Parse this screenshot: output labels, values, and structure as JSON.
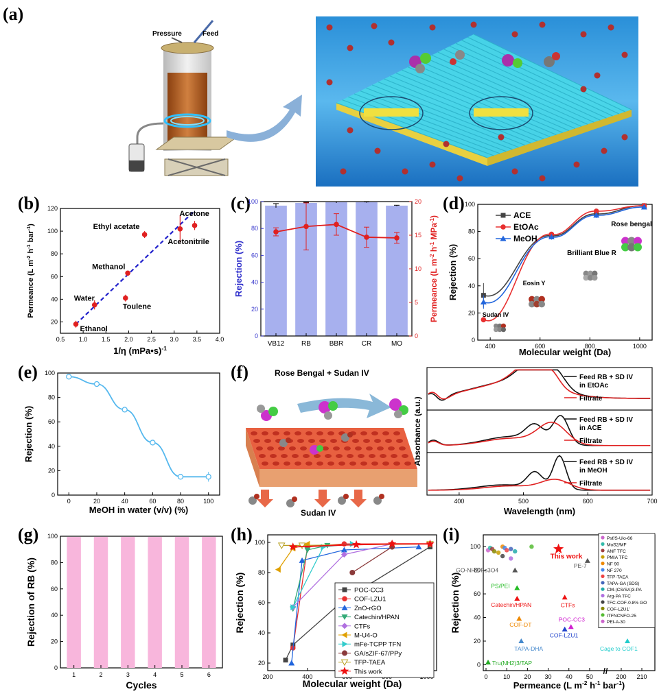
{
  "labels": {
    "a": "(a)",
    "b": "(b)",
    "c": "(c)",
    "d": "(d)",
    "e": "(e)",
    "f": "(f)",
    "g": "(g)",
    "h": "(h)",
    "i": "(i)"
  },
  "panel_a": {
    "pressure": "Pressure",
    "feed": "Feed"
  },
  "panel_f": {
    "top_label": "Rose Bengal + Sudan IV",
    "bottom_label": "Sudan IV"
  },
  "colors": {
    "blue": "#3333cc",
    "red": "#e02020",
    "bar": "#a7b0ee",
    "pink": "#f8b6dc"
  },
  "chart_data": [
    {
      "id": "b",
      "type": "scatter",
      "xlabel": "1/η (mPa•s)-1",
      "ylabel": "Permeance (L m-2 h-1 bar-1)",
      "xlim": [
        0.5,
        4.0
      ],
      "ylim": [
        10,
        120
      ],
      "xticks": [
        "0.5",
        "1.0",
        "1.5",
        "2.0",
        "2.5",
        "3.0",
        "3.5",
        "4.0"
      ],
      "yticks": [
        "20",
        "40",
        "60",
        "80",
        "100",
        "120"
      ],
      "points": [
        {
          "label": "Ethanol",
          "x": 0.84,
          "y": 18,
          "err": 3
        },
        {
          "label": "Water",
          "x": 1.25,
          "y": 35,
          "err": 4
        },
        {
          "label": "Toulene",
          "x": 1.93,
          "y": 41,
          "err": 3
        },
        {
          "label": "Methanol",
          "x": 1.98,
          "y": 63,
          "err": 2
        },
        {
          "label": "Ethyl acetate",
          "x": 2.35,
          "y": 97,
          "err": 3
        },
        {
          "label": "Acetonitrile",
          "x": 3.13,
          "y": 102,
          "err": 12
        },
        {
          "label": "Acetone",
          "x": 3.45,
          "y": 105,
          "err": 4
        }
      ],
      "fit": [
        [
          0.84,
          18
        ],
        [
          3.45,
          118
        ]
      ]
    },
    {
      "id": "c",
      "type": "bar",
      "categories": [
        "VB12",
        "RB",
        "BBR",
        "CR",
        "MO"
      ],
      "ylabel": "Rejection (%)",
      "y2label": "Permeance (L m-2 h-1 MPa-1)",
      "ylim": [
        0,
        100
      ],
      "y2lim": [
        0,
        20
      ],
      "yticks": [
        "0",
        "20",
        "40",
        "60",
        "80",
        "100"
      ],
      "y2ticks": [
        "0",
        "5",
        "10",
        "15",
        "20"
      ],
      "rejection": [
        97,
        99,
        99.5,
        99.5,
        97
      ],
      "rejection_err": [
        1.5,
        0.5,
        0.5,
        0.3,
        0.3
      ],
      "permeance": [
        15.5,
        16.3,
        16.6,
        14.7,
        14.6
      ],
      "permeance_err": [
        0.6,
        3.5,
        1.6,
        1.5,
        0.8
      ]
    },
    {
      "id": "d",
      "type": "line",
      "xlabel": "Molecular weight (Da)",
      "ylabel": "Rejection (%)",
      "xlim": [
        350,
        1050
      ],
      "ylim": [
        0,
        100
      ],
      "xticks": [
        "400",
        "600",
        "800",
        "1000"
      ],
      "yticks": [
        "0",
        "20",
        "40",
        "60",
        "80",
        "100"
      ],
      "series": [
        {
          "name": "ACE",
          "x": [
            373,
            646,
            826,
            1018
          ],
          "y": [
            33,
            77,
            93,
            99
          ]
        },
        {
          "name": "EtOAc",
          "x": [
            373,
            646,
            826,
            1018
          ],
          "y": [
            15,
            78,
            95,
            99
          ]
        },
        {
          "name": "MeOH",
          "x": [
            373,
            646,
            826,
            1018
          ],
          "y": [
            28,
            76,
            92,
            98
          ]
        }
      ],
      "annotations": [
        "Rose bengal",
        "Brilliant Blue R",
        "Eosin Y",
        "Sudan IV"
      ]
    },
    {
      "id": "e",
      "type": "line",
      "xlabel": "MeOH in water (v/v) (%)",
      "ylabel": "Rejection (%)",
      "xlim": [
        -8,
        108
      ],
      "ylim": [
        0,
        100
      ],
      "xticks": [
        "0",
        "20",
        "40",
        "60",
        "80",
        "100"
      ],
      "yticks": [
        "0",
        "20",
        "40",
        "60",
        "80",
        "100"
      ],
      "x": [
        0,
        20,
        40,
        60,
        80,
        100
      ],
      "y": [
        97,
        91,
        70,
        43,
        15,
        15
      ]
    },
    {
      "id": "f",
      "type": "line",
      "xlabel": "Wavelength (nm)",
      "ylabel": "Absorbance (a.u.)",
      "xlim": [
        350,
        700
      ],
      "xticks": [
        "400",
        "500",
        "600",
        "700"
      ],
      "subpanels": [
        {
          "legend_feed": "Feed RB + SD IV",
          "legend_feed2": "in EtOAc",
          "legend_filtrate": "Filtrate"
        },
        {
          "legend_feed": "Feed RB + SD IV",
          "legend_feed2": "in ACE",
          "legend_filtrate": "Filtrate"
        },
        {
          "legend_feed": "Feed RB + SD IV",
          "legend_feed2": "in MeOH",
          "legend_filtrate": "Filtrate"
        }
      ]
    },
    {
      "id": "g",
      "type": "bar",
      "xlabel": "Cycles",
      "ylabel": "Rejection of RB (%)",
      "ylim": [
        0,
        100
      ],
      "categories": [
        "1",
        "2",
        "3",
        "4",
        "5",
        "6"
      ],
      "yticks": [
        "0",
        "20",
        "40",
        "60",
        "80",
        "100"
      ],
      "values": [
        99.5,
        99.5,
        99.5,
        99.5,
        99.5,
        99.5
      ]
    },
    {
      "id": "h",
      "type": "line",
      "xlabel": "Molecular weight (Da)",
      "ylabel": "Rejection (%)",
      "xlim": [
        200,
        1050
      ],
      "ylim": [
        15,
        105
      ],
      "xticks": [
        "200",
        "400",
        "600",
        "800",
        "1000"
      ],
      "yticks": [
        "20",
        "40",
        "60",
        "80",
        "100"
      ],
      "series": [
        {
          "name": "POC-CC3",
          "color": "#444444",
          "marker": "square",
          "x": [
            290,
            327,
            585,
            1017
          ],
          "y": [
            22,
            32,
            62,
            97
          ]
        },
        {
          "name": "COF-LZU1",
          "color": "#e83030",
          "marker": "circle",
          "x": [
            327,
            400,
            585,
            826,
            1017
          ],
          "y": [
            30,
            97,
            99,
            99,
            99
          ]
        },
        {
          "name": "ZnO-rGO",
          "color": "#2266dd",
          "marker": "triangle",
          "x": [
            320,
            373,
            585,
            960
          ],
          "y": [
            20,
            88,
            95,
            97
          ]
        },
        {
          "name": "Catechin/HPAN",
          "color": "#33aa77",
          "marker": "tri-down",
          "x": [
            327,
            400,
            500
          ],
          "y": [
            56,
            95,
            98
          ]
        },
        {
          "name": "CTFs",
          "color": "#b070e0",
          "marker": "diamond",
          "x": [
            327,
            585,
            826
          ],
          "y": [
            57,
            92,
            99
          ]
        },
        {
          "name": "M-U4-O",
          "color": "#e0a000",
          "marker": "tri-left",
          "x": [
            253,
            327,
            400
          ],
          "y": [
            82,
            96,
            99
          ]
        },
        {
          "name": "mFe-TCPP TFN",
          "color": "#33cccc",
          "marker": "tri-right",
          "x": [
            327,
            480,
            626
          ],
          "y": [
            57,
            97,
            99
          ]
        },
        {
          "name": "GA/sZIF-67/PPy",
          "color": "#8b3a3a",
          "marker": "hexagon",
          "x": [
            626,
            826
          ],
          "y": [
            80,
            97
          ]
        },
        {
          "name": "TFP-TAEA",
          "color": "#b8a020",
          "marker": "tri-down-open",
          "x": [
            270,
            373,
            1017
          ],
          "y": [
            98,
            98,
            99
          ]
        },
        {
          "name": "This work",
          "color": "#ee1111",
          "marker": "star",
          "x": [
            327,
            646,
            826,
            1017
          ],
          "y": [
            97,
            98.5,
            99,
            99
          ]
        }
      ]
    },
    {
      "id": "i",
      "type": "scatter",
      "xlabel": "Permeance (L m-2 h-1 bar-1)",
      "ylabel": "Rejection (%)",
      "xticks": [
        "0",
        "10",
        "20",
        "30",
        "40",
        "50",
        "200",
        "210"
      ],
      "yticks": [
        "0",
        "20",
        "40",
        "60",
        "80",
        "100"
      ],
      "legend": [
        "Psf/S-Uio-66",
        "MoS2/MF",
        "ANF TFC",
        "PMIA TFC",
        "NF 90",
        "NF 270",
        "TFP-TAEA",
        "TAPA-GA (SDS)",
        "CM-(CS/SA)3-PA",
        "Arg-PA TFC",
        "TFC-COF-0.8% GO",
        "COF-LZU1'",
        "ITFNCNFO-25",
        "PEI-A-30"
      ],
      "points": [
        {
          "label": "This work",
          "x": 35,
          "y": 98,
          "color": "#ee1111"
        },
        {
          "label": "CTFs",
          "x": 38,
          "y": 57,
          "color": "#ee1111"
        },
        {
          "label": "POC-CC3",
          "x": 41,
          "y": 32,
          "color": "#d020d0"
        },
        {
          "label": "COF-LZU1",
          "x": 38,
          "y": 30,
          "color": "#2244cc"
        },
        {
          "label": "COF-DT",
          "x": 16,
          "y": 39,
          "color": "#ee8800"
        },
        {
          "label": "Catechin/HPAN",
          "x": 15,
          "y": 56,
          "color": "#ee1111"
        },
        {
          "label": "PS/PEI",
          "x": 15,
          "y": 65,
          "color": "#22bb22"
        },
        {
          "label": "GO-NH2-Fe3O4",
          "x": 14,
          "y": 80,
          "color": "#555555"
        },
        {
          "label": "TAPA-DHA",
          "x": 17,
          "y": 20,
          "color": "#4488cc"
        },
        {
          "label": "Tru(NH2)3/TAP",
          "x": 1,
          "y": 2,
          "color": "#22aa22"
        },
        {
          "label": "Cage to COF1",
          "x": 203,
          "y": 20,
          "color": "#22cccc"
        },
        {
          "label": "PE-7",
          "x": 49,
          "y": 88,
          "color": "#555555"
        }
      ]
    }
  ]
}
